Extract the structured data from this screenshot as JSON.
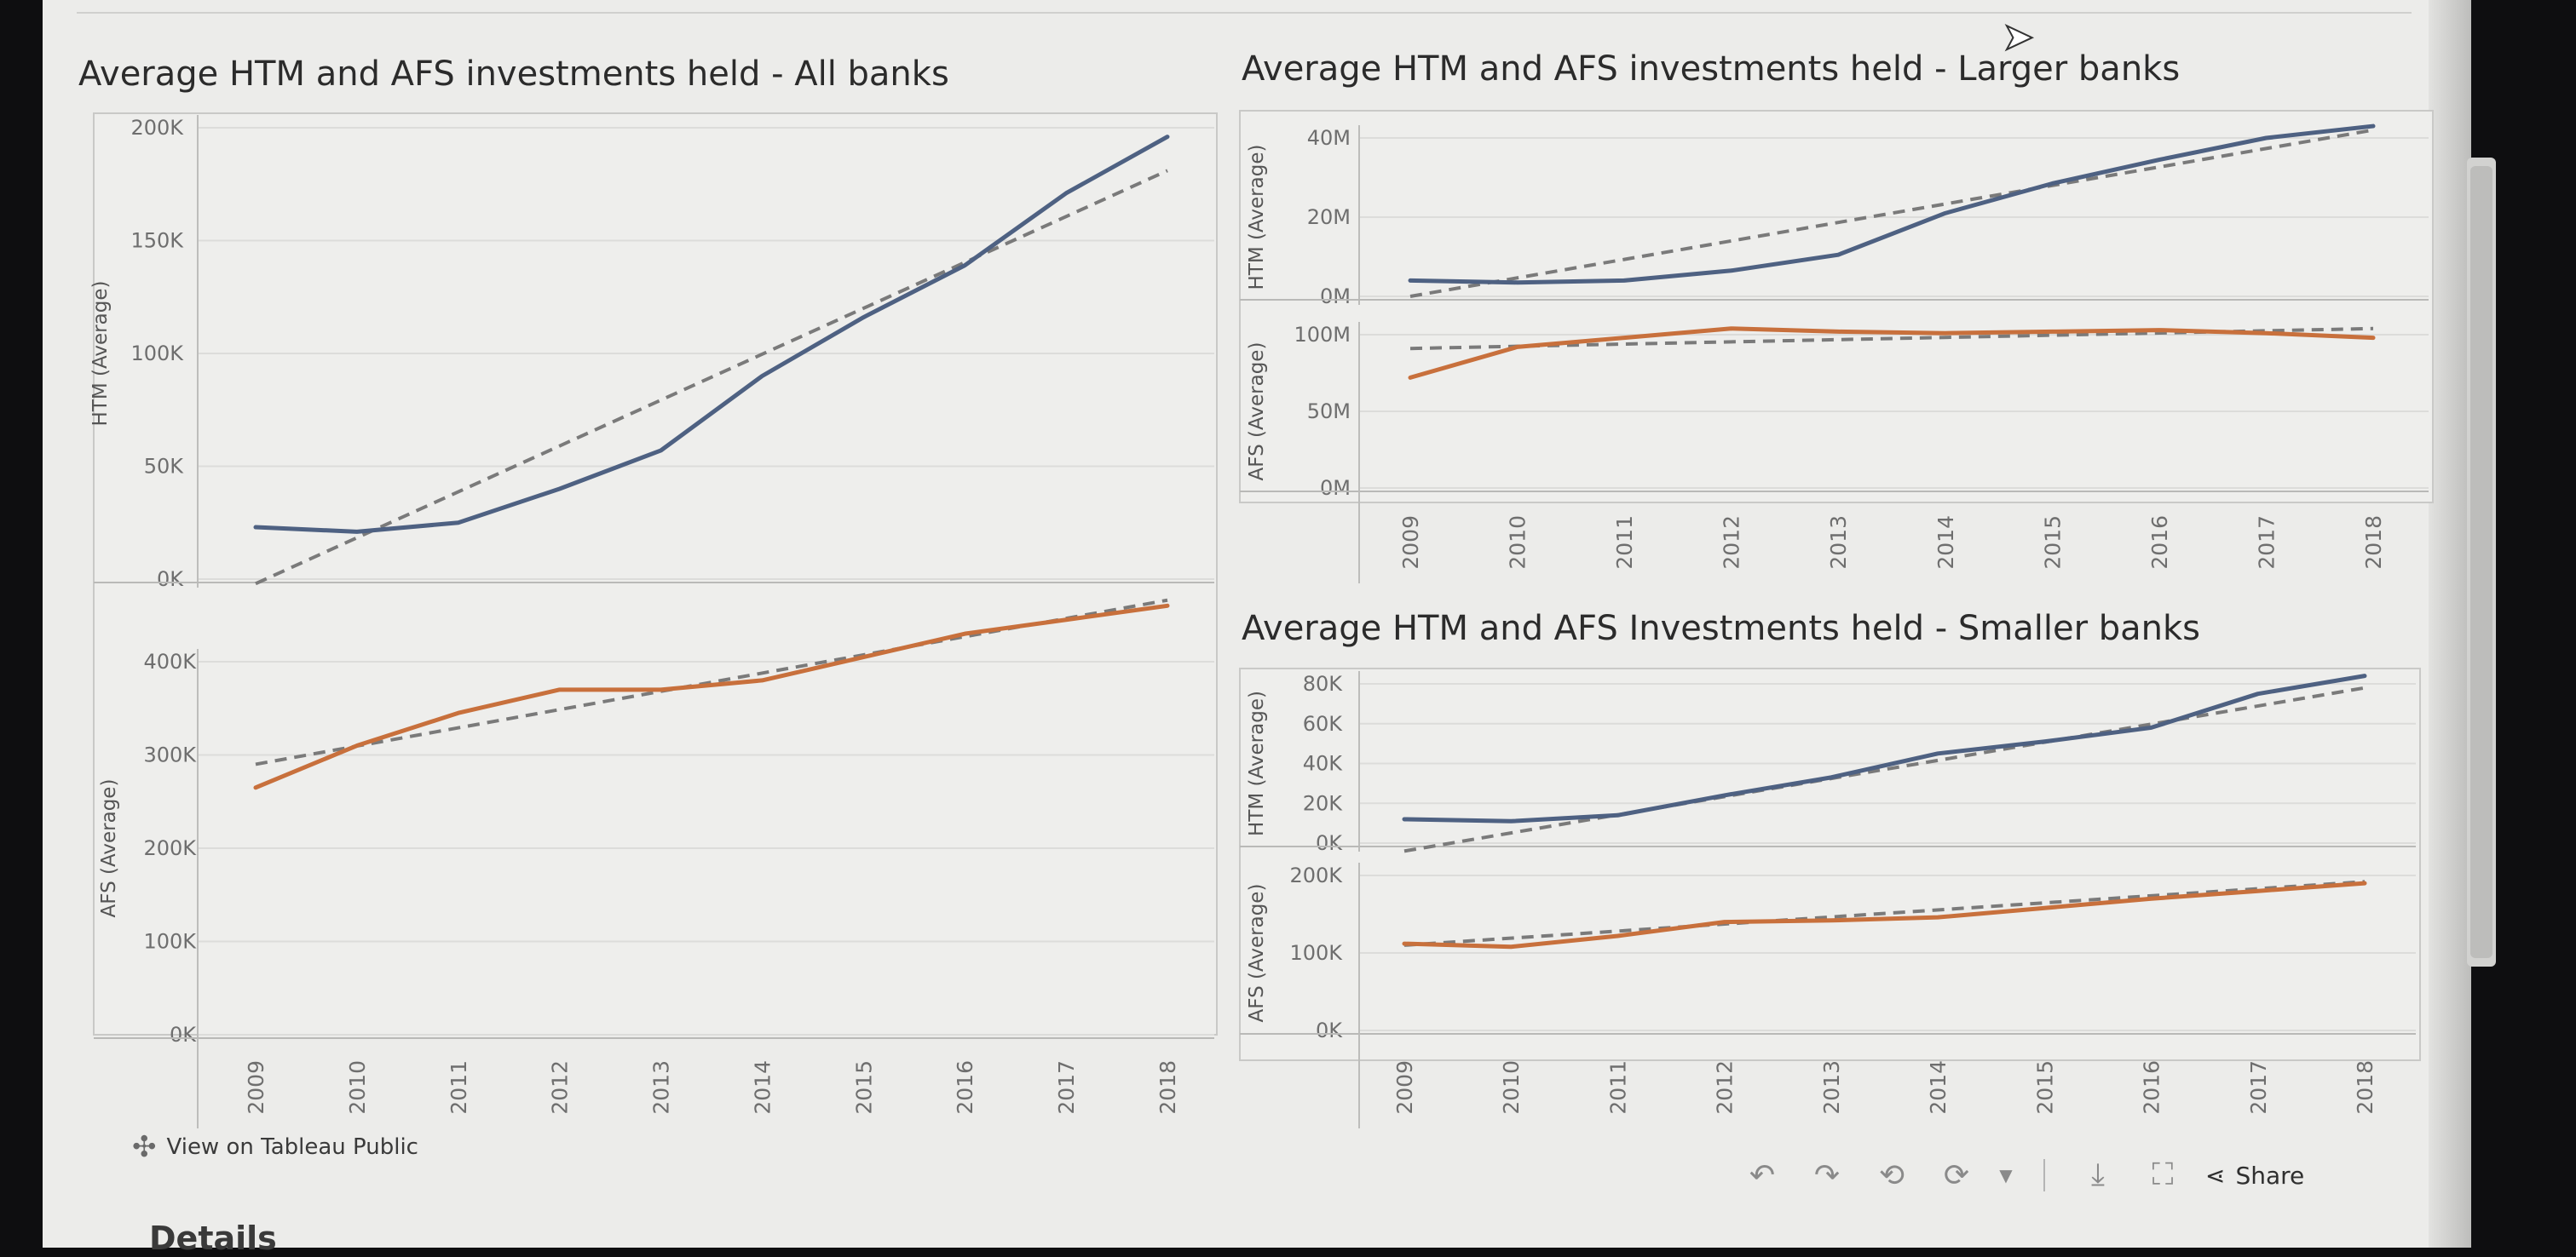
{
  "dashboards": [
    {
      "id": "all",
      "title": "Average HTM and AFS investments held - All banks"
    },
    {
      "id": "larger",
      "title": "Average HTM and AFS investments held - Larger banks"
    },
    {
      "id": "smaller",
      "title": "Average HTM and AFS Investments held - Smaller banks"
    }
  ],
  "chart_data": [
    {
      "type": "line",
      "dashboard": "Average HTM and AFS investments held - All banks",
      "panel": "HTM",
      "ylabel": "HTM (Average)",
      "categories": [
        "2009",
        "2010",
        "2011",
        "2012",
        "2013",
        "2014",
        "2015",
        "2016",
        "2017",
        "2018"
      ],
      "series": [
        {
          "values": [
            23000,
            21000,
            25000,
            40000,
            57000,
            90000,
            116000,
            139000,
            171000,
            196000
          ]
        }
      ],
      "trend": {
        "start": -2000,
        "end": 181000
      },
      "yticks": [
        "0K",
        "50K",
        "100K",
        "150K",
        "200K"
      ],
      "ylim": [
        0,
        200000
      ],
      "grid": true,
      "color": "#4e6182",
      "trend_color": "#7a7a7a"
    },
    {
      "type": "line",
      "dashboard": "Average HTM and AFS investments held - All banks",
      "panel": "AFS",
      "ylabel": "AFS (Average)",
      "categories": [
        "2009",
        "2010",
        "2011",
        "2012",
        "2013",
        "2014",
        "2015",
        "2016",
        "2017",
        "2018"
      ],
      "series": [
        {
          "values": [
            265000,
            310000,
            345000,
            370000,
            370000,
            380000,
            405000,
            430000,
            445000,
            460000
          ]
        }
      ],
      "trend": {
        "start": 290000,
        "end": 466000
      },
      "yticks": [
        "0K",
        "100K",
        "200K",
        "300K",
        "400K"
      ],
      "ylim": [
        0,
        400000
      ],
      "grid": true,
      "color": "#c8703c",
      "trend_color": "#7a7a7a"
    },
    {
      "type": "line",
      "dashboard": "Average HTM and AFS investments held - Larger banks",
      "panel": "HTM",
      "ylabel": "HTM (Average)",
      "categories": [
        "2009",
        "2010",
        "2011",
        "2012",
        "2013",
        "2014",
        "2015",
        "2016",
        "2017",
        "2018"
      ],
      "series": [
        {
          "values": [
            4000000,
            3500000,
            4000000,
            6500000,
            10500000,
            21000000,
            28500000,
            34500000,
            40000000,
            43000000
          ]
        }
      ],
      "trend": {
        "start": 0,
        "end": 42000000
      },
      "yticks": [
        "0M",
        "20M",
        "40M"
      ],
      "ylim": [
        0,
        40000000
      ],
      "grid": true,
      "color": "#4e6182",
      "trend_color": "#7a7a7a"
    },
    {
      "type": "line",
      "dashboard": "Average HTM and AFS investments held - Larger banks",
      "panel": "AFS",
      "ylabel": "AFS (Average)",
      "categories": [
        "2009",
        "2010",
        "2011",
        "2012",
        "2013",
        "2014",
        "2015",
        "2016",
        "2017",
        "2018"
      ],
      "series": [
        {
          "values": [
            72000000,
            92000000,
            98000000,
            104000000,
            102000000,
            101000000,
            102000000,
            103000000,
            101000000,
            98000000
          ]
        }
      ],
      "trend": {
        "start": 91000000,
        "end": 104000000
      },
      "yticks": [
        "0M",
        "50M",
        "100M"
      ],
      "ylim": [
        0,
        100000000
      ],
      "grid": true,
      "color": "#c8703c",
      "trend_color": "#7a7a7a"
    },
    {
      "type": "line",
      "dashboard": "Average HTM and AFS Investments held - Smaller banks",
      "panel": "HTM",
      "ylabel": "HTM (Average)",
      "categories": [
        "2009",
        "2010",
        "2011",
        "2012",
        "2013",
        "2014",
        "2015",
        "2016",
        "2017",
        "2018"
      ],
      "series": [
        {
          "values": [
            12000,
            11000,
            14000,
            24000,
            33000,
            45000,
            51000,
            58000,
            75000,
            84000
          ]
        }
      ],
      "trend": {
        "start": -4000,
        "end": 78000
      },
      "yticks": [
        "0K",
        "20K",
        "40K",
        "60K",
        "80K"
      ],
      "ylim": [
        0,
        80000
      ],
      "grid": true,
      "color": "#4e6182",
      "trend_color": "#7a7a7a"
    },
    {
      "type": "line",
      "dashboard": "Average HTM and AFS Investments held - Smaller banks",
      "panel": "AFS",
      "ylabel": "AFS (Average)",
      "categories": [
        "2009",
        "2010",
        "2011",
        "2012",
        "2013",
        "2014",
        "2015",
        "2016",
        "2017",
        "2018"
      ],
      "series": [
        {
          "values": [
            112000,
            108000,
            122000,
            140000,
            142000,
            146000,
            158000,
            170000,
            180000,
            190000
          ]
        }
      ],
      "trend": {
        "start": 110000,
        "end": 192000
      },
      "yticks": [
        "0K",
        "100K",
        "200K"
      ],
      "ylim": [
        0,
        200000
      ],
      "grid": true,
      "color": "#c8703c",
      "trend_color": "#7a7a7a"
    }
  ],
  "footer": {
    "tableau_link": "View on Tableau Public",
    "share_label": "Share",
    "details_heading": "Details"
  },
  "icons": {
    "tableau_logo": "tableau-logo-icon",
    "undo": "undo-icon",
    "redo": "redo-icon",
    "revert": "revert-icon",
    "refresh": "refresh-icon",
    "download": "download-icon",
    "fullscreen": "fullscreen-icon",
    "share": "share-icon"
  }
}
